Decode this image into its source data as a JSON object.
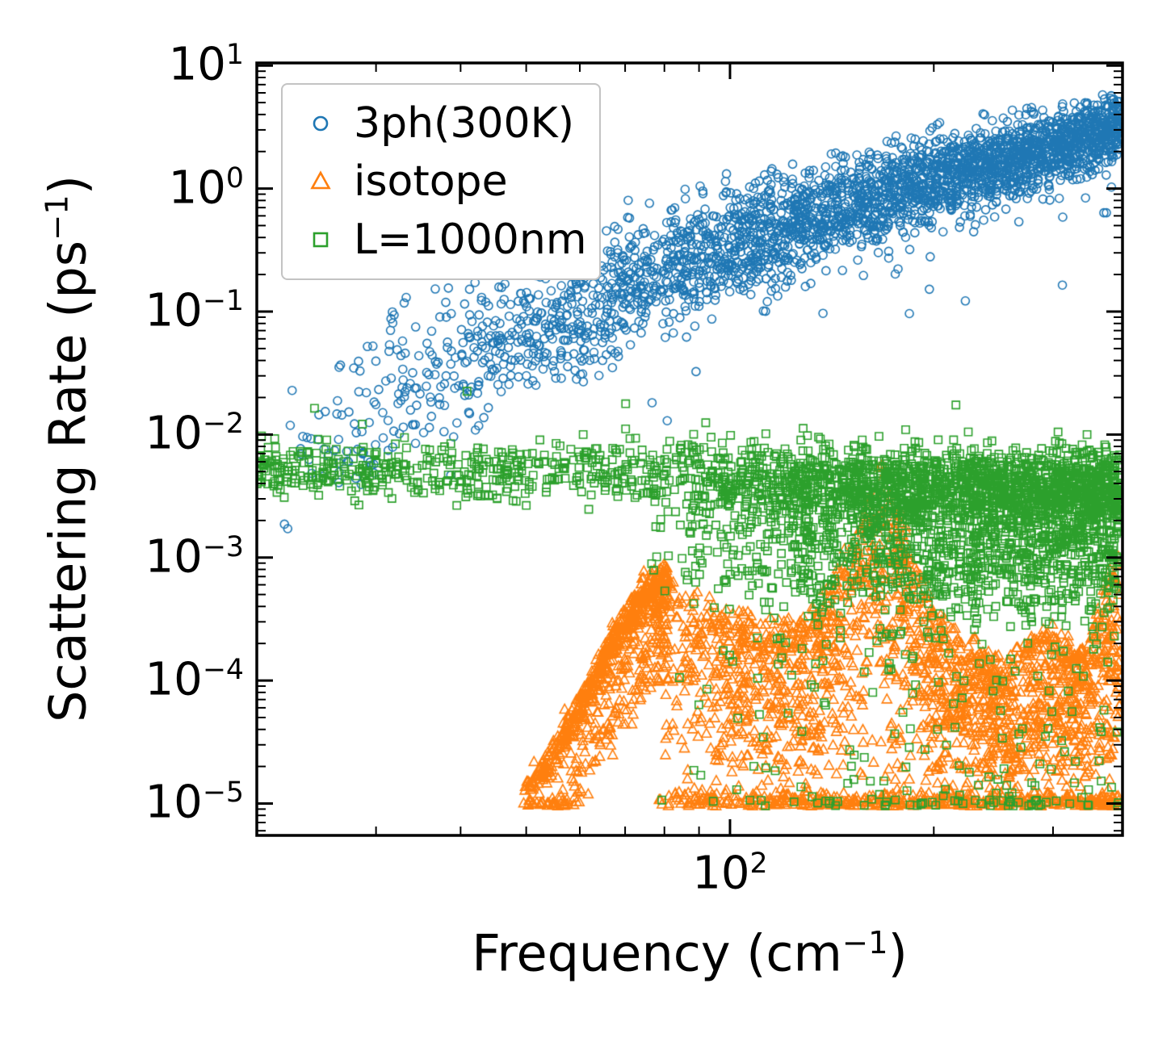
{
  "chart_data": {
    "type": "scatter",
    "title": "",
    "xlabel": "Frequency (cm⁻¹)",
    "ylabel": "Scattering Rate (ps⁻¹)",
    "xscale": "log",
    "yscale": "log",
    "xlim": [
      20,
      380
    ],
    "ylim": [
      5.5e-06,
      10.5
    ],
    "grid": false,
    "legend_position": "upper left",
    "x_major_ticks": [
      {
        "value": 100,
        "exponent": 2
      }
    ],
    "x_minor_ticks": [
      20,
      30,
      40,
      50,
      60,
      70,
      80,
      90,
      200,
      300
    ],
    "y_major_tick_exponents": [
      1,
      0,
      -1,
      -2,
      -3,
      -4,
      -5
    ],
    "series": [
      {
        "name": "3ph(300K)",
        "marker": "circle",
        "color": "#1f77b4",
        "components": [
          {
            "kind": "trend",
            "n": 3000,
            "x_range": [
              21,
              378
            ],
            "x_bias": 0.5,
            "trend": [
              [
                21,
                0.006
              ],
              [
                27,
                0.012
              ],
              [
                35,
                0.03
              ],
              [
                45,
                0.055
              ],
              [
                55,
                0.085
              ],
              [
                70,
                0.16
              ],
              [
                90,
                0.3
              ],
              [
                110,
                0.42
              ],
              [
                140,
                0.62
              ],
              [
                180,
                0.95
              ],
              [
                240,
                1.5
              ],
              [
                300,
                2.1
              ],
              [
                378,
                3.3
              ]
            ],
            "spread_start": 0.34,
            "spread_end": 0.13,
            "tail_frac": 0.03,
            "tail_depth": 0.8,
            "tail_pow": 1.5
          }
        ]
      },
      {
        "name": "isotope",
        "marker": "triangle",
        "color": "#ff7f0e",
        "components": [
          {
            "kind": "trend",
            "n": 750,
            "x_range": [
              49,
              81
            ],
            "x_bias": 0.7,
            "trend": [
              [
                49,
                1.1e-05
              ],
              [
                53,
                2e-05
              ],
              [
                57,
                3.8e-05
              ],
              [
                61,
                7.5e-05
              ],
              [
                65,
                0.000145
              ],
              [
                69,
                0.00026
              ],
              [
                73,
                0.00042
              ],
              [
                77,
                0.00056
              ],
              [
                81,
                0.0007
              ]
            ],
            "spread_start": 0.05,
            "spread_end": 0.09,
            "tail_frac": 0.55,
            "tail_depth": 0.85,
            "tail_pow": 2,
            "floor": 9.5e-06
          },
          {
            "kind": "column",
            "n": 2400,
            "x_range": [
              78,
              378
            ],
            "x_bias": 0.8,
            "envelope": [
              [
                78,
                0.0008
              ],
              [
                88,
                0.00055
              ],
              [
                100,
                0.00035
              ],
              [
                115,
                0.00028
              ],
              [
                130,
                0.00032
              ],
              [
                145,
                0.0009
              ],
              [
                158,
                0.0025
              ],
              [
                168,
                0.0065
              ],
              [
                175,
                0.003
              ],
              [
                185,
                0.0012
              ],
              [
                200,
                0.0004
              ],
              [
                215,
                0.00025
              ],
              [
                235,
                0.00018
              ],
              [
                255,
                0.00014
              ],
              [
                275,
                0.00022
              ],
              [
                295,
                0.00026
              ],
              [
                315,
                0.00022
              ],
              [
                335,
                0.00016
              ],
              [
                350,
                0.0004
              ],
              [
                365,
                0.0009
              ],
              [
                378,
                0.0011
              ]
            ],
            "fill_pow": 0.55,
            "bottom_line_frac": 0.18,
            "floor": 9.5e-06
          }
        ]
      },
      {
        "name": "L=1000nm",
        "marker": "square",
        "color": "#2ca02c",
        "components": [
          {
            "kind": "trend",
            "n": 450,
            "x_range": [
              20,
              78
            ],
            "x_bias": 1.0,
            "trend": [
              [
                20,
                0.0055
              ],
              [
                28,
                0.005
              ],
              [
                38,
                0.0048
              ],
              [
                50,
                0.005
              ],
              [
                64,
                0.0055
              ],
              [
                78,
                0.0052
              ]
            ],
            "spread_start": 0.1,
            "spread_end": 0.13,
            "outlier_frac": 0.035,
            "outlier_decades": 0.4
          },
          {
            "kind": "trend",
            "n": 3100,
            "x_range": [
              75,
              378
            ],
            "x_bias": 0.62,
            "trend": [
              [
                75,
                0.0052
              ],
              [
                100,
                0.0046
              ],
              [
                140,
                0.0042
              ],
              [
                200,
                0.004
              ],
              [
                280,
                0.0038
              ],
              [
                378,
                0.0036
              ]
            ],
            "spread_start": 0.14,
            "spread_end": 0.16,
            "tail_frac": 0.5,
            "tail_depth": 0.9,
            "tail_pow": 1.2,
            "tail2_frac": 0.12,
            "tail2_depth": 2.8,
            "tail2_pow": 1.4,
            "outlier_frac": 0.01,
            "outlier_decades": 0.4,
            "floor": 9.5e-06
          }
        ]
      }
    ]
  },
  "labels": {
    "tick_base": "10",
    "xlabel": {
      "pre": "Frequency (cm",
      "sup": "−1",
      "post": ")"
    },
    "ylabel": {
      "pre": "Scattering Rate (ps",
      "sup": "−1",
      "post": ")"
    }
  },
  "legend": {
    "items": [
      {
        "label": "3ph(300K)",
        "marker": "circle"
      },
      {
        "label": "isotope",
        "marker": "triangle"
      },
      {
        "label": "L=1000nm",
        "marker": "square"
      }
    ]
  },
  "style": {
    "background": "#ffffff",
    "axis_color": "#000000",
    "legend_border": "#c3c3c3"
  }
}
